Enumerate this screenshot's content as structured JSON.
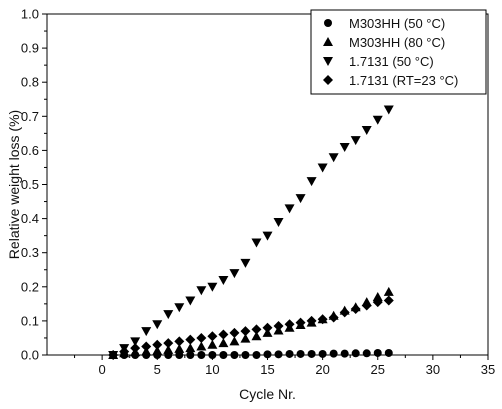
{
  "chart_data": {
    "type": "scatter",
    "title": "",
    "xlabel": "Cycle Nr.",
    "ylabel": "Relative weight loss (%)",
    "xlim": [
      -5,
      35
    ],
    "ylim": [
      0.0,
      1.0
    ],
    "xticks": [
      "0",
      "5",
      "10",
      "15",
      "20",
      "25",
      "30",
      "35"
    ],
    "yticks": [
      "0.0",
      "0.1",
      "0.2",
      "0.3",
      "0.4",
      "0.5",
      "0.6",
      "0.7",
      "0.8",
      "0.9",
      "1.0"
    ],
    "grid": false,
    "legend_position": "top-right",
    "series": [
      {
        "name": "M303HH (50 °C)",
        "marker": "circle",
        "color": "#000000",
        "x": [
          1,
          2,
          3,
          4,
          5,
          6,
          7,
          8,
          9,
          10,
          11,
          12,
          13,
          14,
          15,
          16,
          17,
          18,
          19,
          20,
          21,
          22,
          23,
          24,
          25,
          26
        ],
        "y": [
          0.0,
          0.0,
          0.0,
          0.0,
          0.0,
          0.0,
          0.0,
          0.0,
          0.0,
          0.0,
          0.0,
          0.0,
          0.0,
          0.0,
          0.002,
          0.002,
          0.003,
          0.003,
          0.003,
          0.003,
          0.004,
          0.004,
          0.005,
          0.005,
          0.006,
          0.006
        ]
      },
      {
        "name": "M303HH (80 °C)",
        "marker": "triangle-up",
        "color": "#000000",
        "x": [
          1,
          2,
          3,
          4,
          5,
          6,
          7,
          8,
          9,
          10,
          11,
          12,
          13,
          14,
          15,
          16,
          17,
          18,
          19,
          20,
          21,
          22,
          23,
          24,
          25,
          26
        ],
        "y": [
          0.0,
          0.005,
          0.008,
          0.01,
          0.012,
          0.015,
          0.018,
          0.02,
          0.025,
          0.03,
          0.035,
          0.04,
          0.048,
          0.055,
          0.065,
          0.072,
          0.08,
          0.088,
          0.095,
          0.105,
          0.115,
          0.13,
          0.14,
          0.155,
          0.17,
          0.185
        ]
      },
      {
        "name": "1.7131 (50 °C)",
        "marker": "triangle-down",
        "color": "#000000",
        "x": [
          1,
          2,
          3,
          4,
          5,
          6,
          7,
          8,
          9,
          10,
          11,
          12,
          13,
          14,
          15,
          16,
          17,
          18,
          19,
          20,
          21,
          22,
          23,
          24,
          25,
          26
        ],
        "y": [
          0.0,
          0.02,
          0.04,
          0.07,
          0.09,
          0.12,
          0.14,
          0.16,
          0.19,
          0.2,
          0.22,
          0.24,
          0.27,
          0.33,
          0.35,
          0.39,
          0.43,
          0.46,
          0.51,
          0.55,
          0.58,
          0.61,
          0.63,
          0.66,
          0.69,
          0.72
        ]
      },
      {
        "name": "1.7131 (RT=23 °C)",
        "marker": "diamond",
        "color": "#000000",
        "x": [
          1,
          2,
          3,
          4,
          5,
          6,
          7,
          8,
          9,
          10,
          11,
          12,
          13,
          14,
          15,
          16,
          17,
          18,
          19,
          20,
          21,
          22,
          23,
          24,
          25,
          26
        ],
        "y": [
          0.0,
          0.01,
          0.02,
          0.025,
          0.03,
          0.035,
          0.04,
          0.045,
          0.05,
          0.055,
          0.06,
          0.065,
          0.07,
          0.075,
          0.08,
          0.085,
          0.09,
          0.095,
          0.1,
          0.105,
          0.11,
          0.125,
          0.135,
          0.145,
          0.155,
          0.16
        ]
      }
    ]
  }
}
